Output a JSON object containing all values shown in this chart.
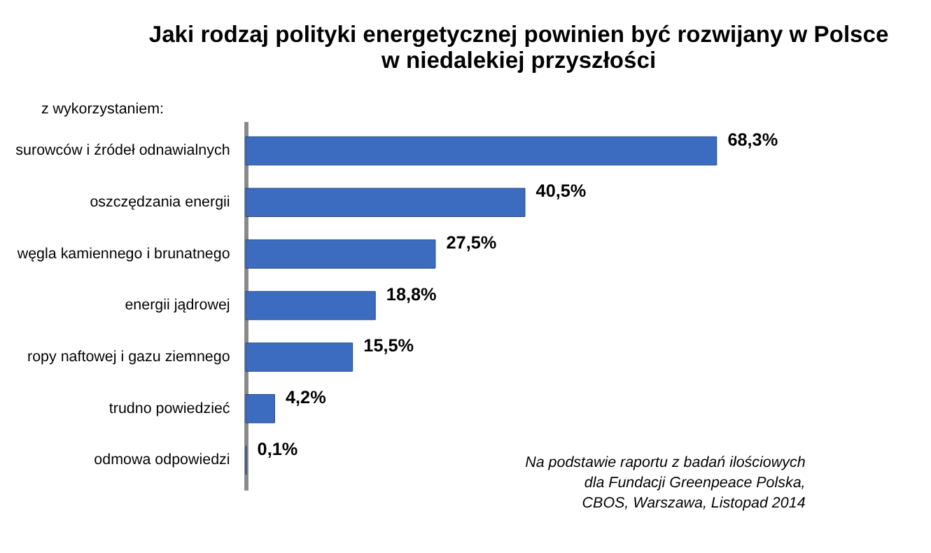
{
  "chart_data": {
    "type": "bar",
    "orientation": "horizontal",
    "title": "Jaki rodzaj polityki energetycznej powinien być rozwijany w Polsce\nw niedalekiej przyszłości",
    "annotations": [
      "z wykorzystaniem:",
      "Na podstawie raportu  z badań ilościowych\ndla Fundacji Greenpeace  Polska,\nCBOS, Warszawa,  Listopad 2014"
    ],
    "categories": [
      "surowców i źródeł odnawialnych",
      "oszczędzania energii",
      "węgla kamiennego i brunatnego",
      "energii jądrowej",
      "ropy naftowej i gazu ziemnego",
      "trudno powiedzieć",
      "odmowa odpowiedzi"
    ],
    "values": [
      68.3,
      40.5,
      27.5,
      18.8,
      15.5,
      4.2,
      0.1
    ],
    "value_labels": [
      "68,3%",
      "40,5%",
      "27,5%",
      "18,8%",
      "15,5%",
      "4,2%",
      "0,1%"
    ],
    "color": "#3b6cc0"
  }
}
